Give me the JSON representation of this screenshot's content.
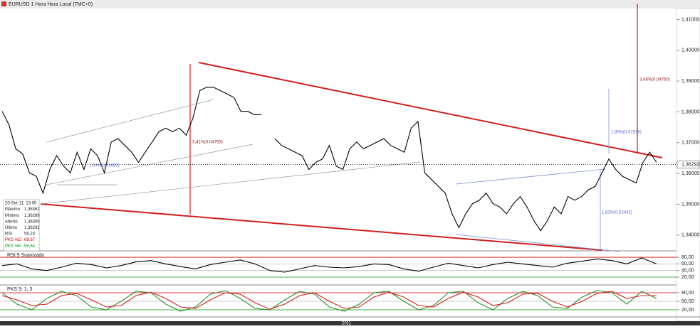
{
  "title": "EURUSD 1 Hora Hora Local (TMC+0)",
  "xlabel": "2011",
  "info_box": [
    [
      "20-Set-11, 13:00"
    ],
    [
      "Máximo",
      "1,36362"
    ],
    [
      "Mínimo",
      "1,36288"
    ],
    [
      "Aberto",
      "1,36356"
    ],
    [
      "Último",
      "1,36292"
    ],
    [
      "RSI",
      "56,23"
    ],
    [
      "PKS %D",
      "69,67"
    ],
    [
      "PKS %K",
      "59,64"
    ]
  ],
  "chart_data": [
    {
      "type": "line",
      "title": "EURUSD",
      "series": [
        {
          "name": "EURUSD",
          "color": "#000000",
          "values": [
            1.3802,
            1.3758,
            1.368,
            1.3664,
            1.3602,
            1.3591,
            1.3536,
            1.3613,
            1.3658,
            1.3624,
            1.3602,
            1.3669,
            1.3613,
            1.368,
            1.3658,
            1.3602,
            1.3702,
            1.3713,
            1.3691,
            1.3669,
            1.3636,
            1.3669,
            1.3702,
            1.3736,
            1.3747,
            1.3736,
            1.3747,
            1.3724,
            1.378,
            1.3869,
            1.388,
            1.388,
            1.3869,
            1.3858,
            1.3847,
            1.3802,
            1.3802,
            1.3791,
            1.3791,
            null,
            1.3713,
            1.3691,
            1.368,
            1.3669,
            1.3658,
            1.3613,
            1.3636,
            1.3647,
            1.3691,
            1.3624,
            1.3613,
            1.368,
            1.3702,
            1.368,
            1.3691,
            1.3702,
            1.3713,
            1.3691,
            1.368,
            1.3669,
            1.3747,
            1.3769,
            1.3602,
            1.358,
            1.3558,
            1.3536,
            1.3469,
            1.3424,
            1.3469,
            1.3502,
            1.3513,
            1.3536,
            1.3502,
            1.3491,
            1.3469,
            1.3502,
            1.3525,
            1.3491,
            1.3447,
            1.3414,
            1.3447,
            1.3491,
            1.3469,
            1.3525,
            1.3513,
            1.3525,
            1.3547,
            1.3558,
            1.3602,
            1.3647,
            1.3613,
            1.3591,
            1.358,
            1.3569,
            1.3636,
            1.3669,
            1.3636
          ]
        }
      ],
      "last_price": {
        "value": 1.36292,
        "label": "1,36292"
      },
      "ylim": [
        1.3351,
        1.4131
      ],
      "yticks": [
        {
          "value": 1.34,
          "label": "1,34000"
        },
        {
          "value": 1.35,
          "label": "1,35000"
        },
        {
          "value": 1.36,
          "label": "1,36000"
        },
        {
          "value": 1.37,
          "label": "1,37000"
        },
        {
          "value": 1.38,
          "label": "1,38000"
        },
        {
          "value": 1.39,
          "label": "1,39000"
        },
        {
          "value": 1.4,
          "label": "1,40000"
        },
        {
          "value": 1.41,
          "label": "1,41000"
        }
      ],
      "annotations": [
        "1,04%(0,01429)",
        "3,41%(0,04753)",
        "1,85%(0,02518)",
        "1,83%(0,02442)",
        "3,48%(0,04750)"
      ]
    },
    {
      "type": "line",
      "title": "RSI 9 Suavizado",
      "series": [
        {
          "name": "RSI",
          "color": "#000000",
          "values": [
            55,
            60,
            45,
            40,
            50,
            62,
            58,
            48,
            55,
            66,
            70,
            60,
            52,
            45,
            58,
            65,
            72,
            60,
            40,
            35,
            45,
            55,
            50,
            48,
            52,
            60,
            58,
            45,
            38,
            50,
            62,
            55,
            48,
            58,
            65,
            60,
            55,
            50,
            62,
            68,
            75,
            70,
            60,
            78,
            60
          ]
        }
      ],
      "ylim": [
        5,
        93
      ],
      "yticks": [
        {
          "value": 20,
          "label": "20,00"
        },
        {
          "value": 40,
          "label": "40,00"
        },
        {
          "value": 60,
          "label": "60,00"
        },
        {
          "value": 80,
          "label": "80,00"
        }
      ]
    },
    {
      "type": "line",
      "title": "PKS 9; 1; 3",
      "series": [
        {
          "name": "PKS %K",
          "color": "#2e8b2e",
          "values": [
            80,
            40,
            20,
            60,
            85,
            70,
            30,
            20,
            50,
            85,
            80,
            40,
            15,
            30,
            75,
            88,
            60,
            25,
            20,
            55,
            85,
            75,
            30,
            15,
            40,
            80,
            85,
            50,
            20,
            35,
            80,
            85,
            45,
            20,
            60,
            85,
            70,
            30,
            25,
            65,
            88,
            80,
            40,
            85,
            60
          ]
        },
        {
          "name": "PKS %D",
          "color": "#d42020",
          "values": [
            70,
            55,
            35,
            40,
            70,
            78,
            55,
            30,
            35,
            70,
            82,
            60,
            30,
            25,
            55,
            80,
            75,
            45,
            22,
            40,
            70,
            80,
            50,
            25,
            30,
            65,
            82,
            65,
            35,
            30,
            60,
            82,
            65,
            35,
            45,
            75,
            78,
            50,
            30,
            50,
            78,
            85,
            60,
            70,
            70
          ]
        }
      ],
      "ylim": [
        0,
        100
      ],
      "yticks": [
        {
          "value": 20,
          "label": "20,00"
        },
        {
          "value": 50,
          "label": "50,00"
        },
        {
          "value": 80,
          "label": "80,00"
        }
      ]
    }
  ]
}
